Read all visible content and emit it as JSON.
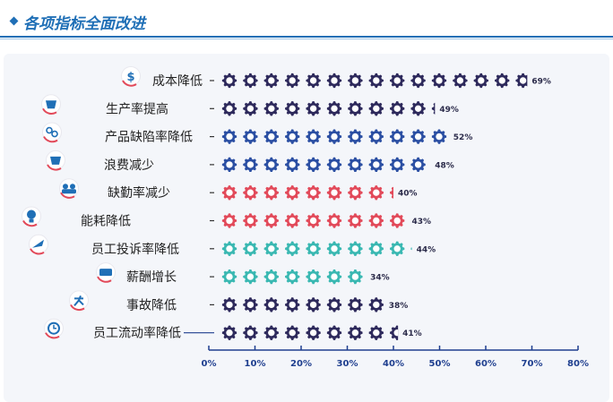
{
  "header": {
    "title": "各项指标全面改进"
  },
  "chart_data": {
    "type": "bar",
    "title": "",
    "xlabel": "",
    "ylabel": "",
    "xlim": [
      0,
      80
    ],
    "x_ticks": [
      "0%",
      "10%",
      "20%",
      "30%",
      "40%",
      "50%",
      "60%",
      "70%",
      "80%"
    ],
    "grid": false,
    "categories": [
      "成本降低",
      "生产率提高",
      "产品缺陷率降低",
      "浪费减少",
      "缺勤率减少",
      "能耗降低",
      "员工投诉率降低",
      "薪酬增长",
      "事故降低",
      "员工流动率降低"
    ],
    "values": [
      69,
      49,
      52,
      48,
      40,
      43,
      44,
      34,
      38,
      41
    ],
    "value_labels": [
      "69%",
      "49%",
      "52%",
      "48%",
      "40%",
      "43%",
      "44%",
      "34%",
      "38%",
      "41%"
    ],
    "colors": [
      "#2e2a5c",
      "#2e2a5c",
      "#2b4fa3",
      "#2b4fa3",
      "#e24a5a",
      "#e24a5a",
      "#3ab8b2",
      "#3ab8b2",
      "#2e2a5c",
      "#2e2a5c"
    ],
    "icons": [
      "dollar-icon",
      "bucket-icon",
      "link-icon",
      "bucket-icon",
      "people-icon",
      "bulb-icon",
      "wave-icon",
      "money-icon",
      "runner-icon",
      "clock-icon"
    ]
  }
}
